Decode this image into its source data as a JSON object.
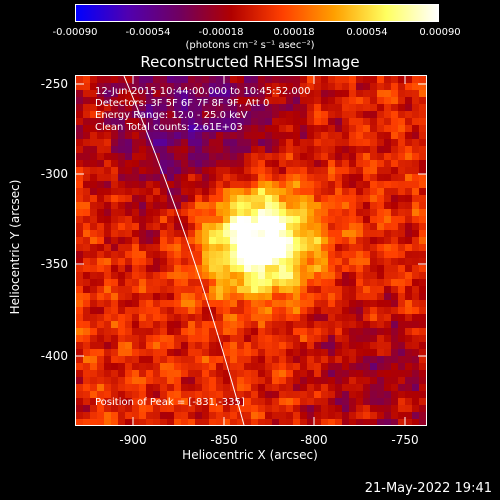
{
  "colorbar": {
    "tick_labels": [
      "-0.00090",
      "-0.00054",
      "-0.00018",
      "0.00018",
      "0.00054",
      "0.00090"
    ],
    "units": "(photons cm⁻² s⁻¹ asec⁻²)",
    "range": [
      -0.0009,
      0.0009
    ],
    "colors": [
      "#0000ff",
      "#5000b0",
      "#700060",
      "#b00000",
      "#ff4000",
      "#ffa000",
      "#ffff60",
      "#ffffff"
    ]
  },
  "title": "Reconstructed RHESSI Image",
  "info": {
    "time_range": "12-Jun-2015 10:44:00.000 to 10:45:52.000",
    "detectors": "Detectors: 3F 5F 6F 7F 8F 9F, Att 0",
    "energy": "Energy Range: 12.0 - 25.0 keV",
    "clean": "Clean    Total counts: 2.61E+03",
    "peak": "Position of Peak = [-831,-335]"
  },
  "axes": {
    "xlabel": "Heliocentric X (arcsec)",
    "ylabel": "Heliocentric Y (arcsec)",
    "xticks": [
      "-900",
      "-850",
      "-800",
      "-750"
    ],
    "yticks": [
      "-250",
      "-300",
      "-350",
      "-400"
    ]
  },
  "chart_data": {
    "type": "heatmap",
    "xlim": [
      -933,
      -738
    ],
    "ylim": [
      -438,
      -245
    ],
    "peak": [
      -831,
      -335
    ]
  },
  "footer": "21-May-2022 19:41"
}
